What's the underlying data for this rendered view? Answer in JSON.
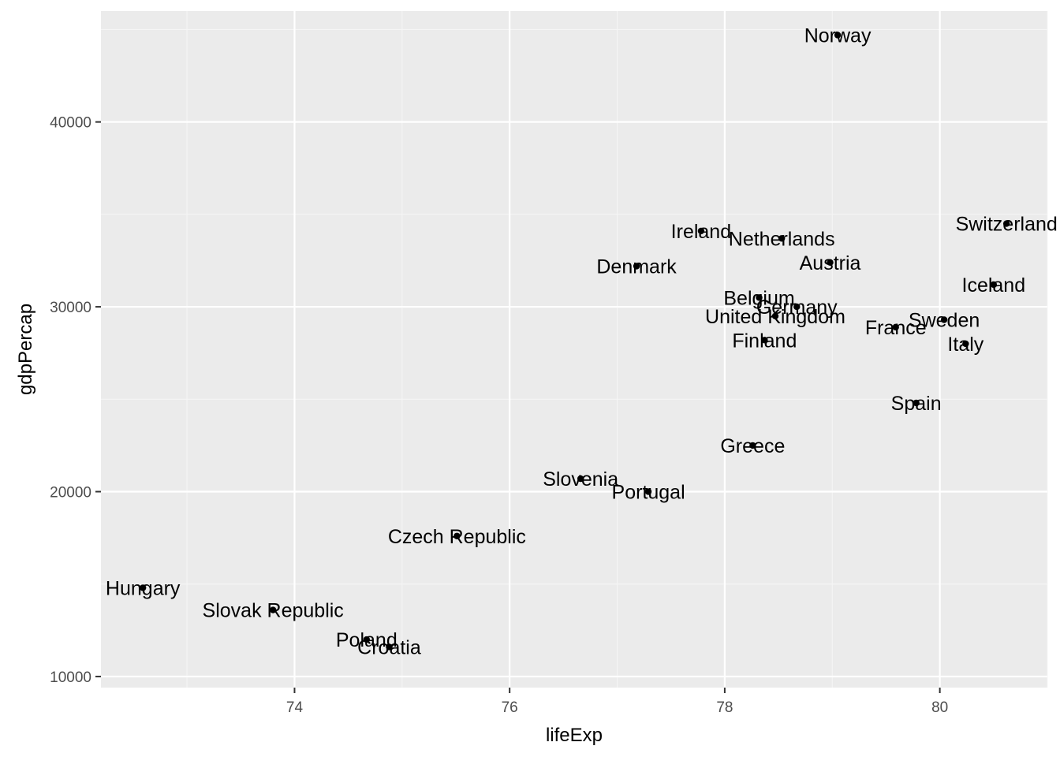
{
  "chart_data": {
    "type": "scatter",
    "title": "",
    "xlabel": "lifeExp",
    "ylabel": "gdpPercap",
    "xlim": [
      72.2,
      81.0
    ],
    "ylim": [
      9400,
      46000
    ],
    "x_ticks": [
      74,
      76,
      78,
      80
    ],
    "x_tick_labels": [
      "74",
      "76",
      "78",
      "80"
    ],
    "y_ticks": [
      10000,
      20000,
      30000,
      40000
    ],
    "y_tick_labels": [
      "10000",
      "20000",
      "30000",
      "40000"
    ],
    "grid": true,
    "legend": "none",
    "colors": {
      "panel": "#ebebeb",
      "grid_major": "#ffffff",
      "grid_minor": "#f5f5f5",
      "point": "#000000",
      "tick": "#333333"
    },
    "points": [
      {
        "label": "Norway",
        "x": 79.05,
        "y": 44700
      },
      {
        "label": "Switzerland",
        "x": 80.62,
        "y": 34500
      },
      {
        "label": "Ireland",
        "x": 77.78,
        "y": 34100
      },
      {
        "label": "Netherlands",
        "x": 78.53,
        "y": 33700
      },
      {
        "label": "Austria",
        "x": 78.98,
        "y": 32400
      },
      {
        "label": "Denmark",
        "x": 77.18,
        "y": 32200
      },
      {
        "label": "Iceland",
        "x": 80.5,
        "y": 31200
      },
      {
        "label": "Belgium",
        "x": 78.32,
        "y": 30500
      },
      {
        "label": "Germany",
        "x": 78.67,
        "y": 30000
      },
      {
        "label": "United Kingdom",
        "x": 78.47,
        "y": 29500
      },
      {
        "label": "Sweden",
        "x": 80.04,
        "y": 29300
      },
      {
        "label": "France",
        "x": 79.59,
        "y": 28900
      },
      {
        "label": "Finland",
        "x": 78.37,
        "y": 28200
      },
      {
        "label": "Italy",
        "x": 80.24,
        "y": 28000
      },
      {
        "label": "Spain",
        "x": 79.78,
        "y": 24800
      },
      {
        "label": "Greece",
        "x": 78.26,
        "y": 22500
      },
      {
        "label": "Slovenia",
        "x": 76.66,
        "y": 20700
      },
      {
        "label": "Portugal",
        "x": 77.29,
        "y": 20000
      },
      {
        "label": "Czech Republic",
        "x": 75.51,
        "y": 17600
      },
      {
        "label": "Hungary",
        "x": 72.59,
        "y": 14800
      },
      {
        "label": "Slovak Republic",
        "x": 73.8,
        "y": 13600
      },
      {
        "label": "Poland",
        "x": 74.67,
        "y": 12000
      },
      {
        "label": "Croatia",
        "x": 74.88,
        "y": 11600
      }
    ]
  }
}
